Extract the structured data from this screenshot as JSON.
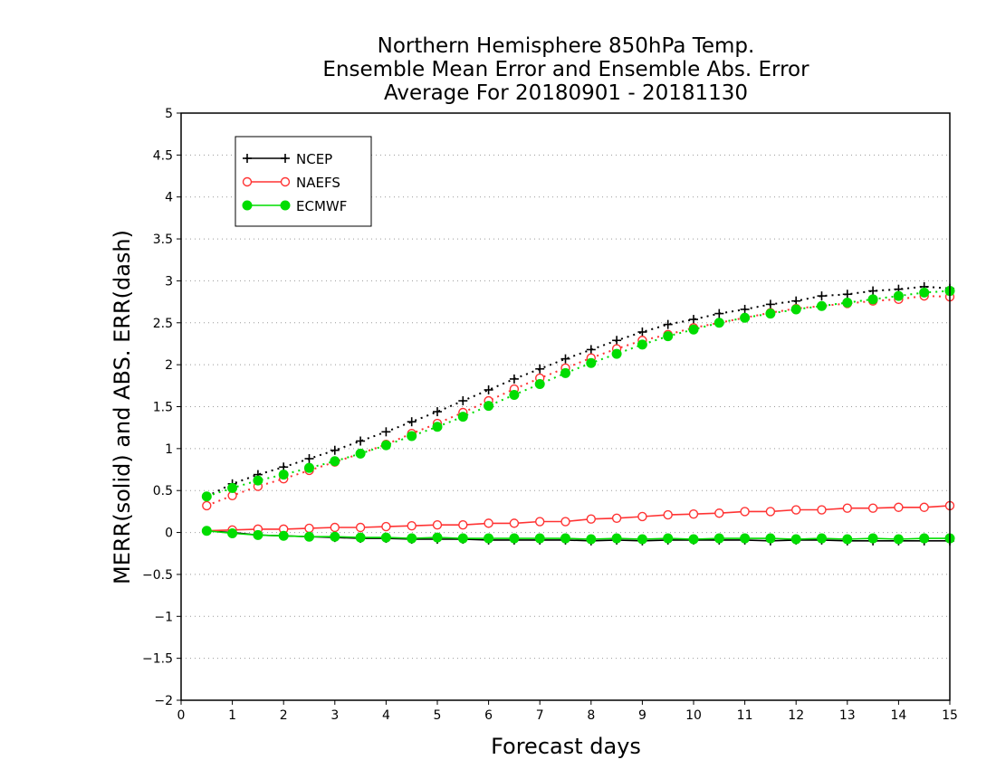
{
  "chart_data": {
    "type": "line",
    "title": [
      "Northern Hemisphere 850hPa Temp.",
      "Ensemble Mean Error and Ensemble Abs. Error",
      "Average For 20180901 - 20181130"
    ],
    "xlabel": "Forecast days",
    "ylabel": "MERR(solid) and ABS. ERR(dash)",
    "xlim": [
      0,
      15
    ],
    "ylim": [
      -2,
      5
    ],
    "xticks": [
      0,
      1,
      2,
      3,
      4,
      5,
      6,
      7,
      8,
      9,
      10,
      11,
      12,
      13,
      14,
      15
    ],
    "xtick_labels": [
      "0",
      "1",
      "2",
      "3",
      "4",
      "5",
      "6",
      "7",
      "8",
      "9",
      "10",
      "11",
      "12",
      "13",
      "14",
      "15"
    ],
    "yticks": [
      -2,
      -1.5,
      -1,
      -0.5,
      0,
      0.5,
      1,
      1.5,
      2,
      2.5,
      3,
      3.5,
      4,
      4.5,
      5
    ],
    "ytick_labels": [
      "−2",
      "−1.5",
      "−1",
      "−0.5",
      "0",
      "0.5",
      "1",
      "1.5",
      "2",
      "2.5",
      "3",
      "3.5",
      "4",
      "4.5",
      "5"
    ],
    "grid": "horizontal dotted",
    "legend_position": "top-left",
    "x": [
      0.5,
      1,
      1.5,
      2,
      2.5,
      3,
      3.5,
      4,
      4.5,
      5,
      5.5,
      6,
      6.5,
      7,
      7.5,
      8,
      8.5,
      9,
      9.5,
      10,
      10.5,
      11,
      11.5,
      12,
      12.5,
      13,
      13.5,
      14,
      14.5,
      15
    ],
    "series": [
      {
        "name": "NCEP",
        "color": "#000000",
        "marker": "plus",
        "mean_error": [
          0.02,
          0.0,
          -0.03,
          -0.04,
          -0.05,
          -0.06,
          -0.07,
          -0.07,
          -0.08,
          -0.08,
          -0.08,
          -0.09,
          -0.09,
          -0.09,
          -0.09,
          -0.1,
          -0.09,
          -0.1,
          -0.09,
          -0.09,
          -0.09,
          -0.09,
          -0.1,
          -0.09,
          -0.09,
          -0.1,
          -0.1,
          -0.1,
          -0.1,
          -0.1
        ],
        "abs_error": [
          0.43,
          0.58,
          0.69,
          0.78,
          0.88,
          0.98,
          1.09,
          1.2,
          1.32,
          1.44,
          1.57,
          1.7,
          1.83,
          1.95,
          2.07,
          2.18,
          2.29,
          2.39,
          2.48,
          2.54,
          2.61,
          2.66,
          2.72,
          2.76,
          2.82,
          2.84,
          2.88,
          2.9,
          2.93,
          2.91
        ]
      },
      {
        "name": "NAEFS",
        "color": "#ff3333",
        "marker": "open-circle",
        "mean_error": [
          0.02,
          0.03,
          0.04,
          0.04,
          0.05,
          0.06,
          0.06,
          0.07,
          0.08,
          0.09,
          0.09,
          0.11,
          0.11,
          0.13,
          0.13,
          0.16,
          0.17,
          0.19,
          0.21,
          0.22,
          0.23,
          0.25,
          0.25,
          0.27,
          0.27,
          0.29,
          0.29,
          0.3,
          0.3,
          0.32
        ],
        "abs_error": [
          0.32,
          0.44,
          0.55,
          0.64,
          0.74,
          0.84,
          0.94,
          1.05,
          1.18,
          1.3,
          1.43,
          1.57,
          1.71,
          1.84,
          1.96,
          2.08,
          2.19,
          2.29,
          2.36,
          2.44,
          2.5,
          2.56,
          2.62,
          2.67,
          2.7,
          2.73,
          2.76,
          2.78,
          2.82,
          2.81
        ]
      },
      {
        "name": "ECMWF",
        "color": "#00dd00",
        "marker": "filled-circle",
        "mean_error": [
          0.02,
          -0.01,
          -0.03,
          -0.04,
          -0.05,
          -0.05,
          -0.06,
          -0.06,
          -0.07,
          -0.06,
          -0.07,
          -0.07,
          -0.07,
          -0.07,
          -0.07,
          -0.08,
          -0.07,
          -0.08,
          -0.07,
          -0.08,
          -0.07,
          -0.07,
          -0.07,
          -0.08,
          -0.07,
          -0.08,
          -0.07,
          -0.08,
          -0.07,
          -0.07
        ],
        "abs_error": [
          0.43,
          0.53,
          0.62,
          0.69,
          0.77,
          0.85,
          0.94,
          1.04,
          1.15,
          1.26,
          1.38,
          1.51,
          1.64,
          1.77,
          1.9,
          2.02,
          2.13,
          2.24,
          2.34,
          2.42,
          2.5,
          2.56,
          2.61,
          2.66,
          2.7,
          2.74,
          2.78,
          2.82,
          2.86,
          2.88
        ]
      }
    ]
  }
}
